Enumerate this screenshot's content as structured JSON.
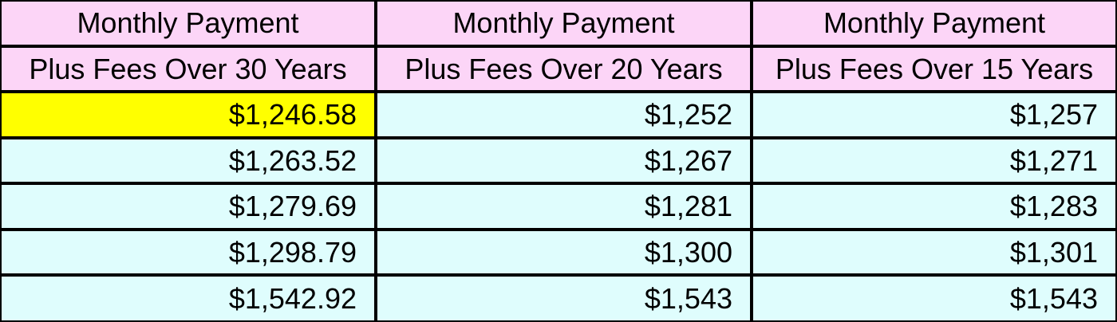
{
  "colors": {
    "header_bg": "#fcd5f7",
    "cell_bg": "#dffdfd",
    "highlight_bg": "#ffff00",
    "grid_line": "#000000"
  },
  "table": {
    "header_row_1": [
      "Monthly Payment",
      "Monthly Payment",
      "Monthly Payment"
    ],
    "header_row_2": [
      "Plus Fees Over 30 Years",
      "Plus Fees Over 20 Years",
      "Plus Fees Over 15 Years"
    ],
    "rows": [
      [
        "$1,246.58",
        "$1,252",
        "$1,257"
      ],
      [
        "$1,263.52",
        "$1,267",
        "$1,271"
      ],
      [
        "$1,279.69",
        "$1,281",
        "$1,283"
      ],
      [
        "$1,298.79",
        "$1,300",
        "$1,301"
      ],
      [
        "$1,542.92",
        "$1,543",
        "$1,543"
      ]
    ],
    "highlighted_cell": "$1,246.58"
  }
}
